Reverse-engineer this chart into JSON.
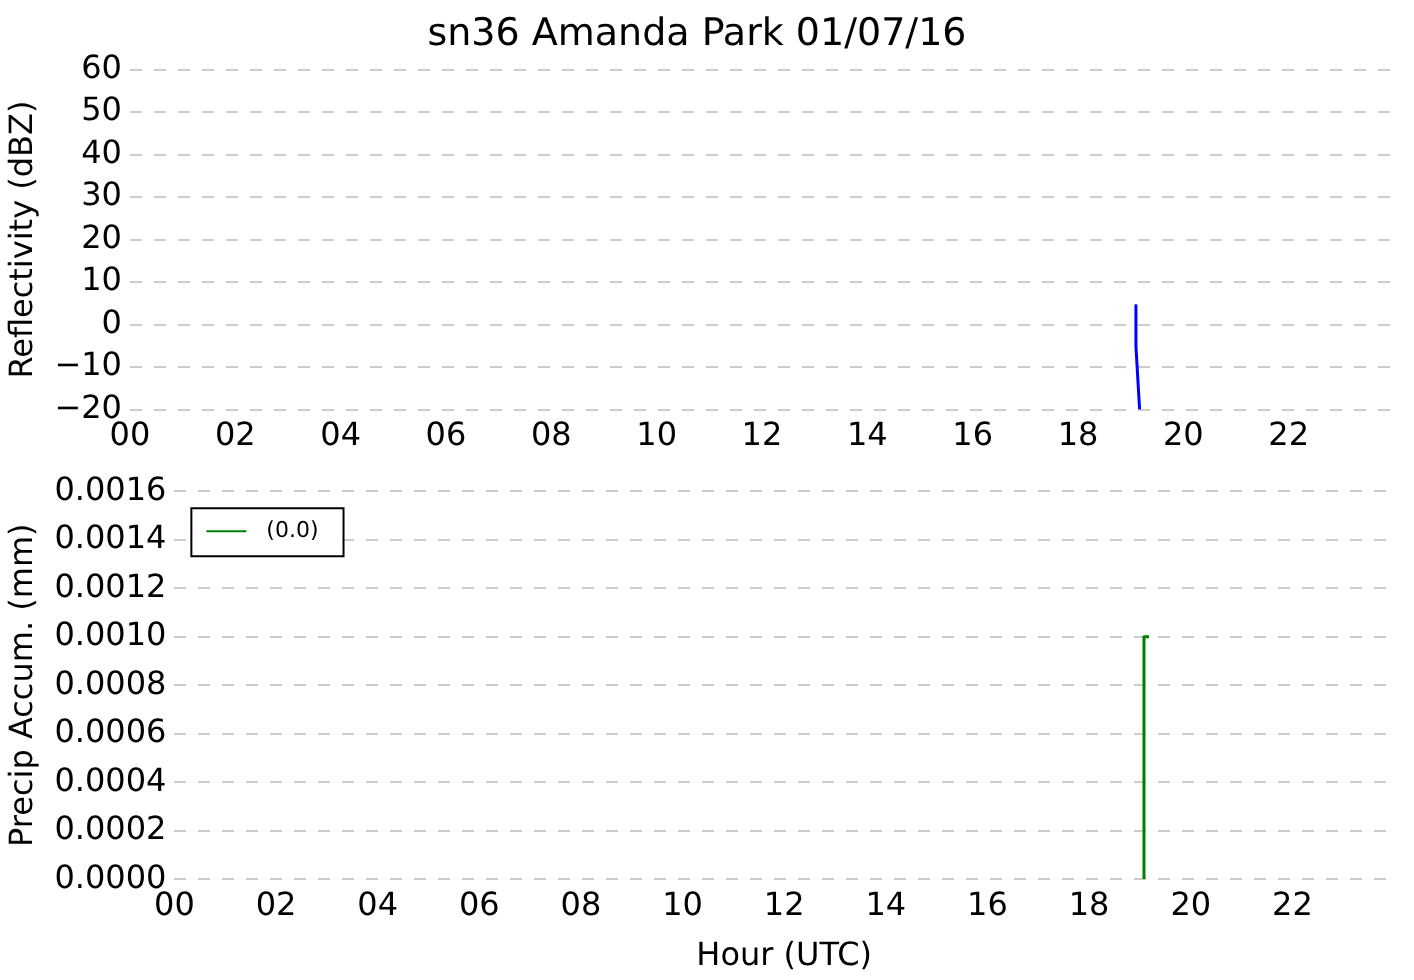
{
  "chart_data": [
    {
      "type": "line",
      "title": "sn36 Amanda Park 01/07/16",
      "ylabel": "Reflectivity (dBZ)",
      "xlim": [
        0,
        24
      ],
      "xticks": [
        {
          "value": 0,
          "label": "00"
        },
        {
          "value": 2,
          "label": "02"
        },
        {
          "value": 4,
          "label": "04"
        },
        {
          "value": 6,
          "label": "06"
        },
        {
          "value": 8,
          "label": "08"
        },
        {
          "value": 10,
          "label": "10"
        },
        {
          "value": 12,
          "label": "12"
        },
        {
          "value": 14,
          "label": "14"
        },
        {
          "value": 16,
          "label": "16"
        },
        {
          "value": 18,
          "label": "18"
        },
        {
          "value": 20,
          "label": "20"
        },
        {
          "value": 22,
          "label": "22"
        }
      ],
      "ylim": [
        -20,
        60
      ],
      "yticks": [
        {
          "value": -20,
          "label": "−20"
        },
        {
          "value": -10,
          "label": "−10"
        },
        0,
        10,
        20,
        30,
        40,
        50,
        60
      ],
      "grid": "y",
      "series": [
        {
          "color": "#0000ff",
          "x": [
            19.1,
            19.1,
            19.17
          ],
          "values": [
            4.5,
            -5,
            -20
          ]
        }
      ]
    },
    {
      "type": "line",
      "xlabel": "Hour (UTC)",
      "ylabel": "Precip Accum. (mm)",
      "xlim": [
        0,
        24
      ],
      "xticks": [
        {
          "value": 0,
          "label": "00"
        },
        {
          "value": 2,
          "label": "02"
        },
        {
          "value": 4,
          "label": "04"
        },
        {
          "value": 6,
          "label": "06"
        },
        {
          "value": 8,
          "label": "08"
        },
        {
          "value": 10,
          "label": "10"
        },
        {
          "value": 12,
          "label": "12"
        },
        {
          "value": 14,
          "label": "14"
        },
        {
          "value": 16,
          "label": "16"
        },
        {
          "value": 18,
          "label": "18"
        },
        {
          "value": 20,
          "label": "20"
        },
        {
          "value": 22,
          "label": "22"
        }
      ],
      "ylim": [
        0,
        0.0016
      ],
      "yticks": [
        {
          "value": 0,
          "label": "0.0000"
        },
        {
          "value": 0.0002,
          "label": "0.0002"
        },
        {
          "value": 0.0004,
          "label": "0.0004"
        },
        {
          "value": 0.0006,
          "label": "0.0006"
        },
        {
          "value": 0.0008,
          "label": "0.0008"
        },
        {
          "value": 0.001,
          "label": "0.0010"
        },
        {
          "value": 0.0012,
          "label": "0.0012"
        },
        {
          "value": 0.0014,
          "label": "0.0014"
        },
        {
          "value": 0.0016,
          "label": "0.0016"
        }
      ],
      "grid": "y",
      "legend": "top left",
      "series": [
        {
          "name": "(0.0)",
          "color": "#008000",
          "x": [
            19.08,
            19.08,
            19.18
          ],
          "values": [
            0,
            0.001,
            0.001
          ]
        }
      ]
    }
  ]
}
